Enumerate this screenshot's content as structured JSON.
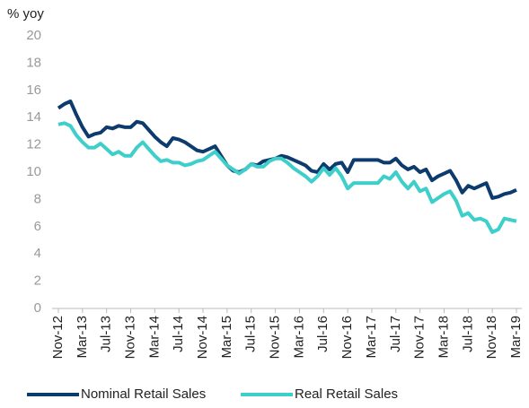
{
  "chart_data": {
    "type": "line",
    "y_label": "% yoy",
    "categories": [
      "Nov-12",
      null,
      null,
      null,
      "Mar-13",
      null,
      null,
      null,
      "Jul-13",
      null,
      null,
      null,
      "Nov-13",
      null,
      null,
      null,
      "Mar-14",
      null,
      null,
      null,
      "Jul-14",
      null,
      null,
      null,
      "Nov-14",
      null,
      null,
      null,
      "Mar-15",
      null,
      null,
      null,
      "Jul-15",
      null,
      null,
      null,
      "Nov-15",
      null,
      null,
      null,
      "Mar-16",
      null,
      null,
      null,
      "Jul-16",
      null,
      null,
      null,
      "Nov-16",
      null,
      null,
      null,
      "Mar-17",
      null,
      null,
      null,
      "Jul-17",
      null,
      null,
      null,
      "Nov-17",
      null,
      null,
      null,
      "Mar-18",
      null,
      null,
      null,
      "Jul-18",
      null,
      null,
      null,
      "Nov-18",
      null,
      null,
      null,
      "Mar-19"
    ],
    "series": [
      {
        "name": "Nominal Retail Sales",
        "color": "#0d3b6e",
        "values": [
          14.7,
          15.0,
          15.2,
          14.2,
          13.3,
          12.6,
          12.8,
          12.9,
          13.3,
          13.2,
          13.4,
          13.3,
          13.3,
          13.7,
          13.6,
          13.1,
          12.6,
          12.2,
          11.9,
          12.5,
          12.4,
          12.2,
          11.9,
          11.6,
          11.5,
          11.7,
          11.9,
          11.2,
          10.5,
          10.1,
          10.0,
          10.2,
          10.6,
          10.5,
          10.8,
          10.9,
          11.0,
          11.2,
          11.1,
          10.9,
          10.7,
          10.5,
          10.1,
          10.0,
          10.6,
          10.2,
          10.6,
          10.7,
          10.0,
          10.9,
          10.9,
          10.9,
          10.9,
          10.9,
          10.7,
          10.7,
          11.0,
          10.5,
          10.2,
          10.4,
          10.0,
          10.2,
          9.4,
          9.7,
          9.9,
          10.1,
          9.4,
          8.5,
          9.0,
          8.8,
          9.0,
          9.2,
          8.1,
          8.2,
          8.4,
          8.5,
          8.7
        ]
      },
      {
        "name": "Real Retail Sales",
        "color": "#3ecfcb",
        "values": [
          13.5,
          13.6,
          13.4,
          12.7,
          12.2,
          11.8,
          11.8,
          12.1,
          11.7,
          11.3,
          11.5,
          11.2,
          11.2,
          11.8,
          12.2,
          11.7,
          11.2,
          10.8,
          10.9,
          10.7,
          10.7,
          10.5,
          10.6,
          10.8,
          10.9,
          11.2,
          11.5,
          11.0,
          10.5,
          10.2,
          9.9,
          10.2,
          10.6,
          10.4,
          10.4,
          10.8,
          11.0,
          11.0,
          10.7,
          10.3,
          10.0,
          9.7,
          9.3,
          9.7,
          10.3,
          9.8,
          10.3,
          9.7,
          8.8,
          9.2,
          9.2,
          9.2,
          9.2,
          9.2,
          9.7,
          9.5,
          10.0,
          9.3,
          8.8,
          9.3,
          8.6,
          8.8,
          7.8,
          8.1,
          8.4,
          8.6,
          7.9,
          6.8,
          7.0,
          6.5,
          6.6,
          6.4,
          5.6,
          5.8,
          6.6,
          6.5,
          6.4
        ]
      }
    ],
    "ylim": [
      0,
      20
    ],
    "yticks": [
      0,
      2,
      4,
      6,
      8,
      10,
      12,
      14,
      16,
      18,
      20
    ],
    "grid": false,
    "legend": "bottom"
  }
}
